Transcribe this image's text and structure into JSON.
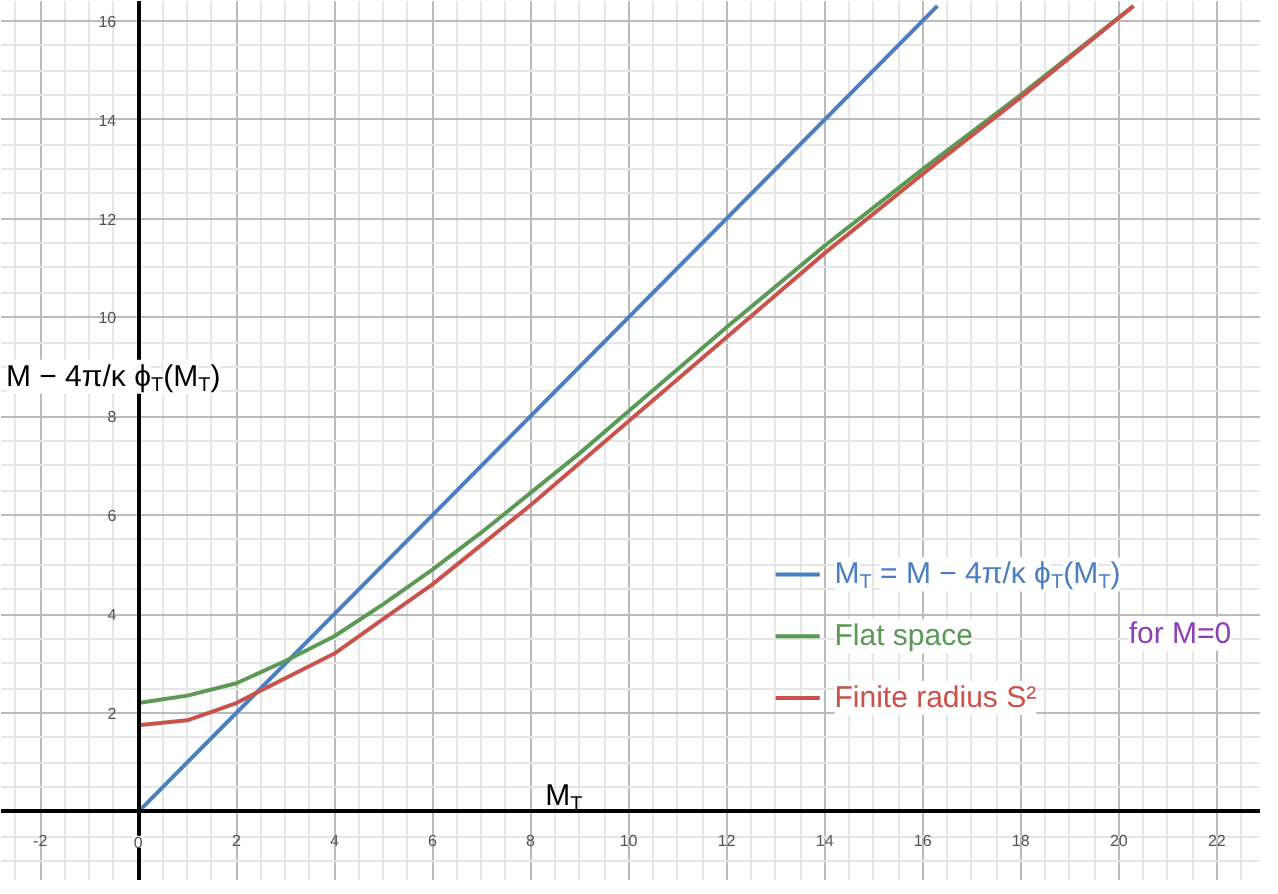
{
  "chart_data": {
    "type": "line",
    "xlabel": "M$_{T}$",
    "ylabel": "M − 4π/κ ϕ$_{T}$(M$_{T}$)",
    "xlim": [
      -2.8,
      22.9
    ],
    "ylim": [
      -1.4,
      16.4
    ],
    "xticks": [
      -2,
      {
        "value": 0,
        "label": "0"
      },
      2,
      4,
      6,
      8,
      10,
      12,
      14,
      16,
      18,
      20,
      22
    ],
    "yticks": [
      2,
      4,
      6,
      8,
      10,
      12,
      14,
      16
    ],
    "grid": true,
    "legend": "bottom right",
    "marker": "none",
    "line_style": "solid",
    "annotations": [
      "for M=0"
    ],
    "series": [
      {
        "name": "M$_{T}$ = M − 4π/κ ϕ$_{T}$(M$_{T}$)",
        "color": "#4a7fc1",
        "x": [
          0,
          16.3
        ],
        "values": [
          0,
          16.3
        ]
      },
      {
        "name": "Flat space",
        "color": "#5a9a55",
        "x": [
          0,
          1,
          2,
          3,
          4,
          5,
          6,
          7,
          8,
          9,
          10,
          12,
          14,
          16,
          18,
          20.3
        ],
        "values": [
          2.2,
          2.35,
          2.6,
          3.05,
          3.55,
          4.2,
          4.9,
          5.65,
          6.45,
          7.25,
          8.1,
          9.8,
          11.45,
          13.0,
          14.5,
          16.3
        ]
      },
      {
        "name": "Finite radius S²",
        "color": "#c9524a",
        "x": [
          0,
          1,
          2,
          3,
          4,
          5,
          6,
          7,
          8,
          9,
          10,
          12,
          14,
          16,
          18,
          20.3
        ],
        "values": [
          1.75,
          1.85,
          2.2,
          2.7,
          3.2,
          3.9,
          4.6,
          5.4,
          6.2,
          7.05,
          7.9,
          9.6,
          11.3,
          12.9,
          14.45,
          16.3
        ]
      }
    ]
  }
}
